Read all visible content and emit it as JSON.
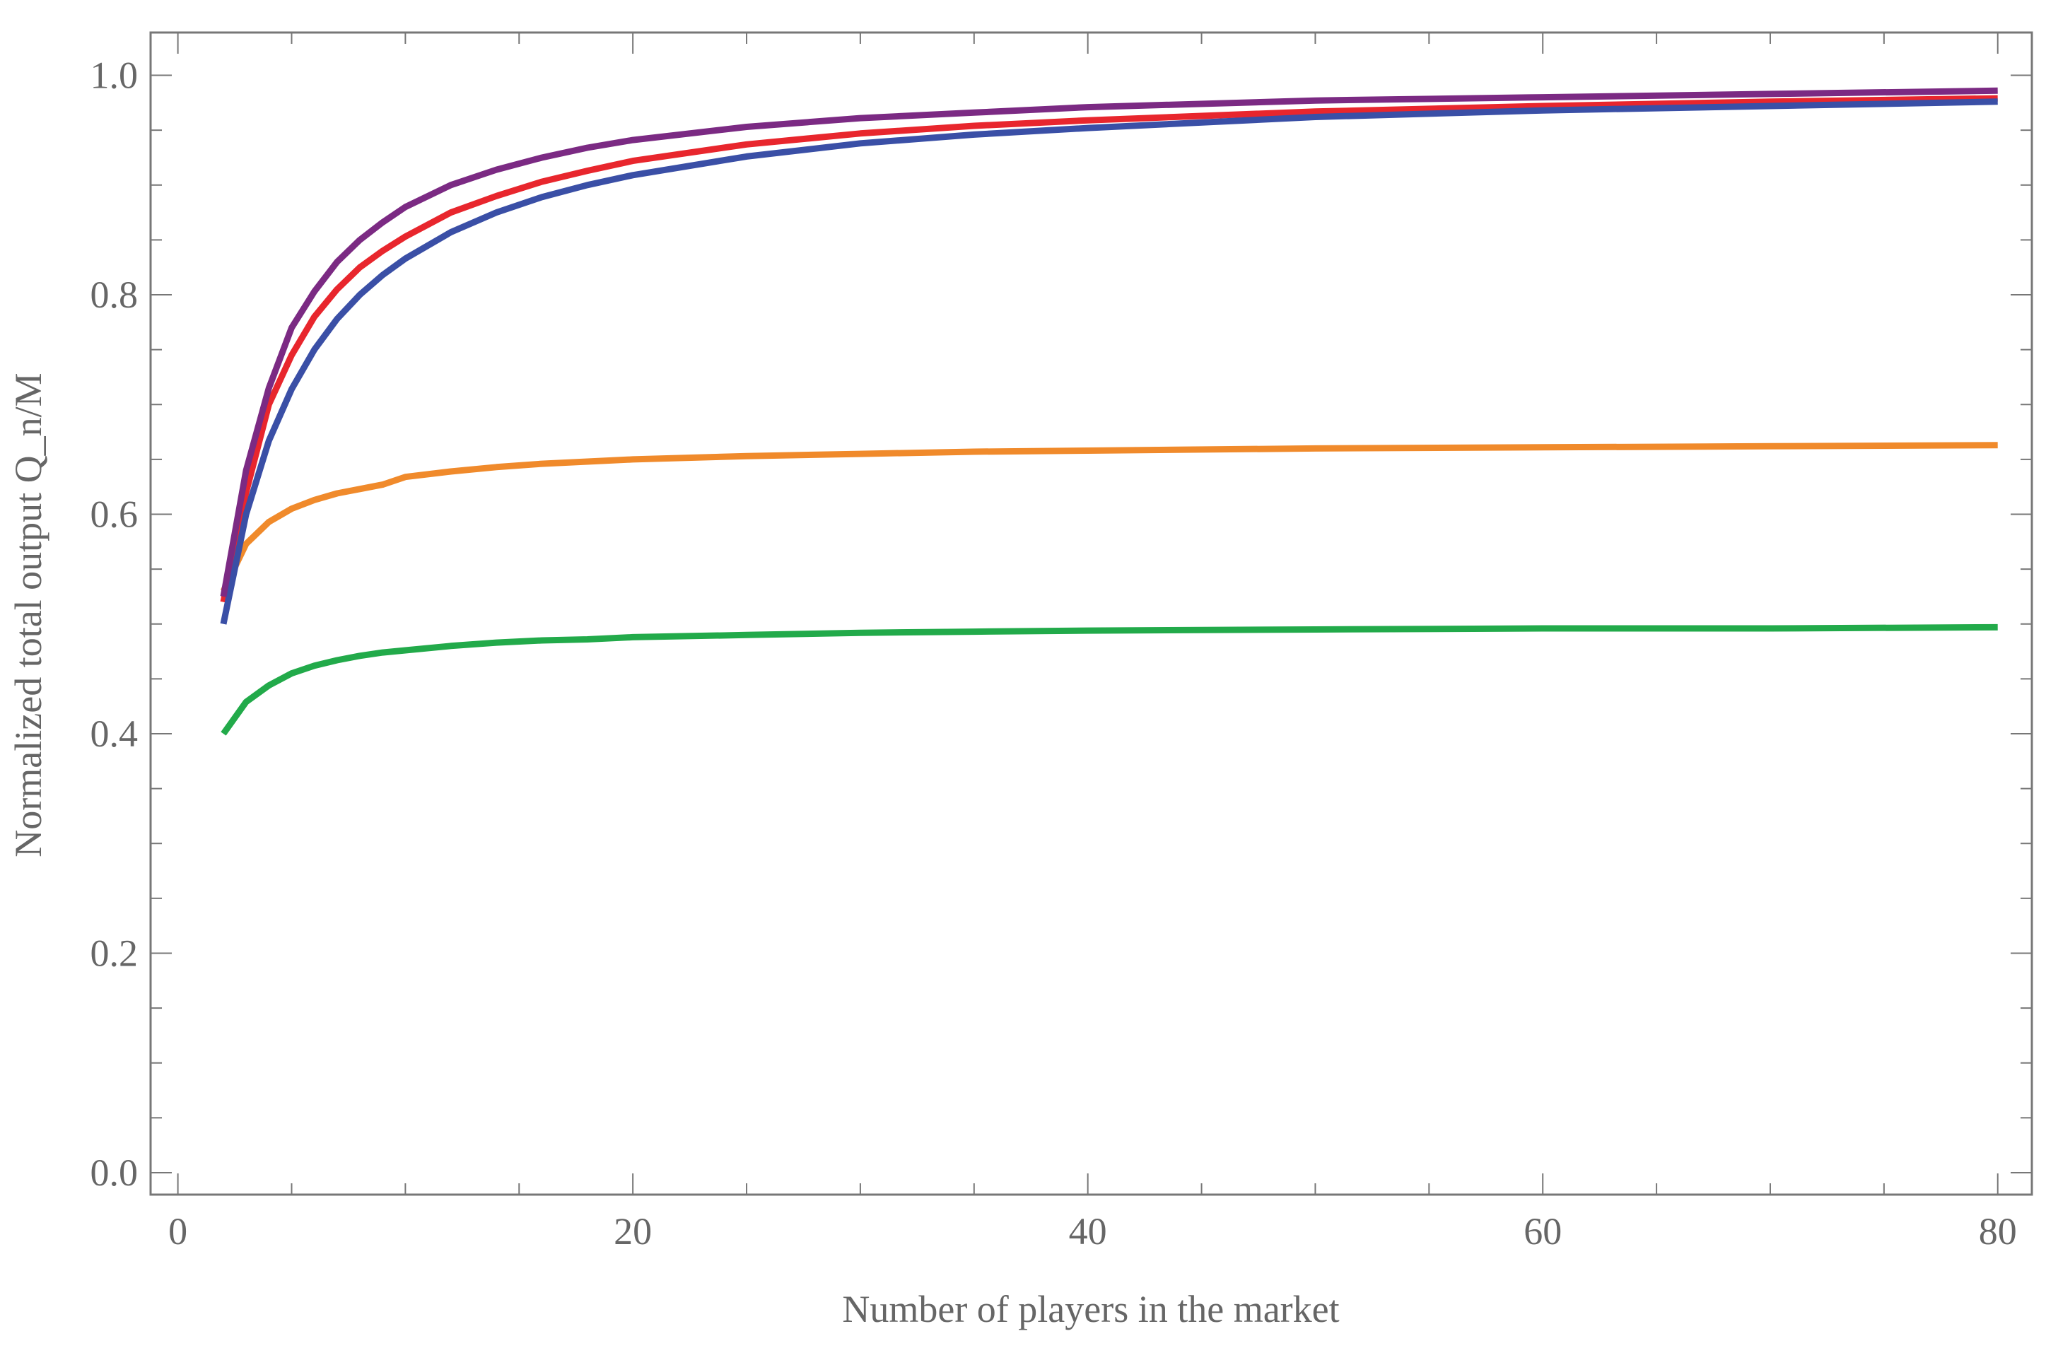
{
  "chart_data": {
    "type": "line",
    "x_label": "Number of players in the market",
    "y_label": "Normalized total output Q_n/M",
    "x": [
      2,
      3,
      4,
      5,
      6,
      7,
      8,
      9,
      10,
      12,
      14,
      16,
      18,
      20,
      25,
      30,
      35,
      40,
      50,
      60,
      70,
      80
    ],
    "series": [
      {
        "color": "#22aa4a",
        "values": [
          0.4,
          0.429,
          0.444,
          0.455,
          0.462,
          0.467,
          0.471,
          0.474,
          0.476,
          0.48,
          0.483,
          0.485,
          0.486,
          0.488,
          0.49,
          0.492,
          0.493,
          0.494,
          0.495,
          0.496,
          0.496,
          0.497
        ]
      },
      {
        "color": "#f08a2b",
        "values": [
          0.53,
          0.573,
          0.593,
          0.605,
          0.613,
          0.619,
          0.623,
          0.627,
          0.634,
          0.639,
          0.643,
          0.646,
          0.648,
          0.65,
          0.653,
          0.655,
          0.657,
          0.658,
          0.66,
          0.661,
          0.662,
          0.663
        ]
      },
      {
        "color": "#e8262d",
        "values": [
          0.52,
          0.62,
          0.7,
          0.745,
          0.78,
          0.805,
          0.825,
          0.84,
          0.853,
          0.875,
          0.89,
          0.903,
          0.913,
          0.922,
          0.937,
          0.947,
          0.954,
          0.959,
          0.967,
          0.972,
          0.976,
          0.979
        ]
      },
      {
        "color": "#3a4fa6",
        "values": [
          0.5,
          0.6,
          0.667,
          0.714,
          0.75,
          0.778,
          0.8,
          0.818,
          0.833,
          0.857,
          0.875,
          0.889,
          0.9,
          0.909,
          0.926,
          0.938,
          0.946,
          0.952,
          0.962,
          0.968,
          0.972,
          0.976
        ]
      },
      {
        "color": "#7b2a83",
        "values": [
          0.525,
          0.64,
          0.715,
          0.77,
          0.803,
          0.83,
          0.85,
          0.866,
          0.88,
          0.9,
          0.914,
          0.925,
          0.934,
          0.941,
          0.953,
          0.961,
          0.966,
          0.971,
          0.977,
          0.98,
          0.983,
          0.986
        ]
      }
    ],
    "xlim": [
      -1.2,
      81.5
    ],
    "ylim": [
      -0.02,
      1.039
    ],
    "xticks": [
      0,
      20,
      40,
      60,
      80
    ],
    "xminorticks": [
      5,
      10,
      15,
      25,
      30,
      35,
      45,
      50,
      55,
      65,
      70,
      75
    ],
    "yticks": [
      {
        "value": 0,
        "label": "0.0"
      },
      0.2,
      0.4,
      0.6,
      0.8,
      {
        "value": 1,
        "label": "1.0"
      }
    ],
    "yminorticks": [
      0.05,
      0.1,
      0.15,
      0.25,
      0.3,
      0.35,
      0.45,
      0.5,
      0.55,
      0.65,
      0.7,
      0.75,
      0.85,
      0.9,
      0.95
    ],
    "grid": false
  }
}
